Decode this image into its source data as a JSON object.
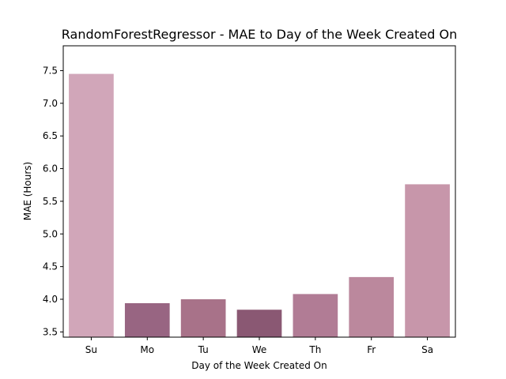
{
  "chart_data": {
    "type": "bar",
    "title": "RandomForestRegressor - MAE to Day of the Week Created On",
    "xlabel": "Day of the Week Created On",
    "ylabel": "MAE (Hours)",
    "categories": [
      "Su",
      "Mo",
      "Tu",
      "We",
      "Th",
      "Fr",
      "Sa"
    ],
    "values": [
      7.45,
      3.94,
      4.0,
      3.84,
      4.08,
      4.34,
      5.76
    ],
    "colors": [
      "#d1a6b9",
      "#986582",
      "#a87289",
      "#8a5873",
      "#b17c95",
      "#bb889d",
      "#c796aa"
    ],
    "ylim": [
      3.42,
      7.88
    ],
    "yticks": [
      3.5,
      4.0,
      4.5,
      5.0,
      5.5,
      6.0,
      6.5,
      7.0,
      7.5
    ],
    "ytick_labels": [
      "3.5",
      "4.0",
      "4.5",
      "5.0",
      "5.5",
      "6.0",
      "6.5",
      "7.0",
      "7.5"
    ],
    "grid": false,
    "legend": "none"
  }
}
